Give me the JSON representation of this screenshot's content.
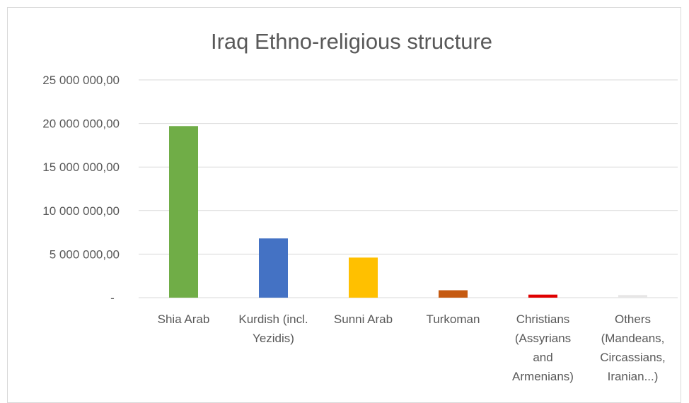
{
  "chart_data": {
    "type": "bar",
    "title": "Iraq Ethno-religious structure",
    "xlabel": "",
    "ylabel": "",
    "ylim": [
      0,
      25000000
    ],
    "grid": true,
    "legend": "none",
    "yticks": [
      {
        "value": 0,
        "label": "-"
      },
      {
        "value": 5000000,
        "label": "5 000 000,00"
      },
      {
        "value": 10000000,
        "label": "10 000 000,00"
      },
      {
        "value": 15000000,
        "label": "15 000 000,00"
      },
      {
        "value": 20000000,
        "label": "20 000 000,00"
      },
      {
        "value": 25000000,
        "label": "25 000 000,00"
      }
    ],
    "categories": [
      "Shia Arab",
      "Kurdish (incl. Yezidis)",
      "Sunni Arab",
      "Turkoman",
      "Christians (Assyrians and Armenians)",
      "Others (Mandeans, Circassians, Iranian...)"
    ],
    "category_lines": [
      [
        "Shia Arab"
      ],
      [
        "Kurdish (incl.",
        "Yezidis)"
      ],
      [
        "Sunni Arab"
      ],
      [
        "Turkoman"
      ],
      [
        "Christians",
        "(Assyrians",
        "and",
        "Armenians)"
      ],
      [
        "Others",
        "(Mandeans,",
        "Circassians,",
        "Iranian...)"
      ]
    ],
    "values": [
      19700000,
      6800000,
      4600000,
      850000,
      350000,
      300000
    ],
    "colors": [
      "#70ad47",
      "#4472c4",
      "#ffc000",
      "#c55a11",
      "#e00000",
      "#e7e6e6"
    ]
  }
}
